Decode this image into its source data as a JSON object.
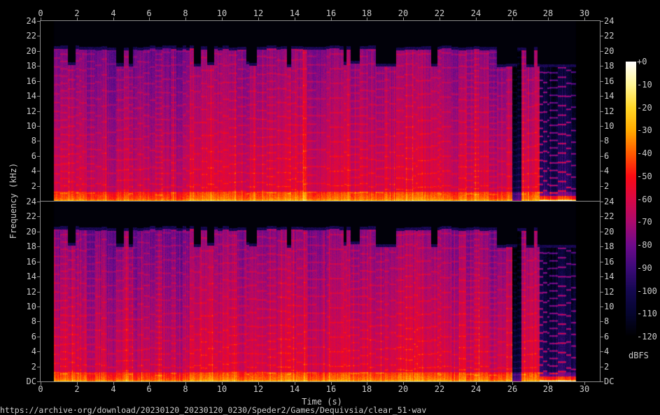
{
  "chart_data": {
    "type": "heatmap",
    "subtype": "spectrogram",
    "channels": 2,
    "xlabel": "Time (s)",
    "ylabel": "Frequency (kHz)",
    "xlim": [
      0,
      30.8
    ],
    "ylim": [
      0,
      24
    ],
    "audio_duration_s": 29.5,
    "xticks": [
      "0",
      "2",
      "4",
      "6",
      "8",
      "10",
      "12",
      "14",
      "16",
      "18",
      "20",
      "22",
      "24",
      "26",
      "28",
      "30"
    ],
    "yticks_channel_1": [
      "2",
      "4",
      "6",
      "8",
      "10",
      "12",
      "14",
      "16",
      "18",
      "20",
      "22",
      "24"
    ],
    "yticks_channel_2": [
      "DC",
      "2",
      "4",
      "6",
      "8",
      "10",
      "12",
      "14",
      "16",
      "18",
      "20",
      "22",
      "24"
    ],
    "colorbar": {
      "label": "dBFS",
      "range": [
        -120,
        0
      ],
      "ticks": [
        "+0",
        "-10",
        "-20",
        "-30",
        "-40",
        "-50",
        "-60",
        "-70",
        "-80",
        "-90",
        "-100",
        "-110",
        "-120"
      ],
      "colors": [
        "#000000",
        "#05052e",
        "#2a0a6e",
        "#6a0a8a",
        "#b00a6e",
        "#e0083a",
        "#ff1a00",
        "#ff6a00",
        "#ffb000",
        "#ffe040",
        "#fff8a0",
        "#ffffff"
      ]
    },
    "grid": false
  },
  "footer": {
    "source": "https://archive·org/download/20230120_20230120_0230/Speder2/Games/Dequivsia/clear_51·wav"
  }
}
